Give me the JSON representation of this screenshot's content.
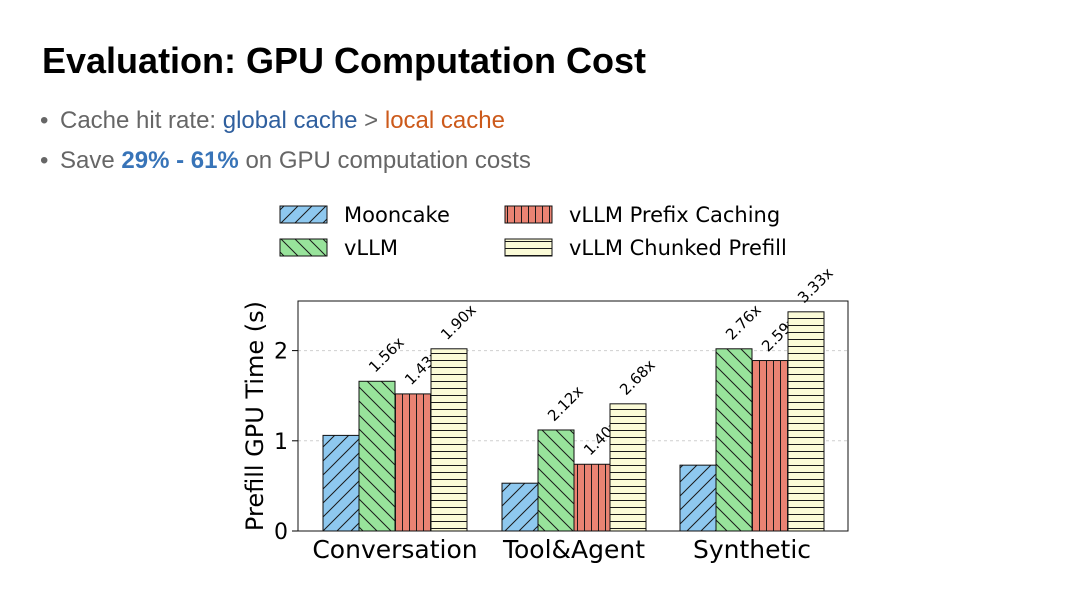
{
  "slide": {
    "title": "Evaluation: GPU Computation Cost",
    "bullet1": {
      "prefix": "Cache hit rate: ",
      "global": "global cache",
      "middle": " > ",
      "local": "local cache"
    },
    "bullet2": {
      "prefix": "Save ",
      "highlight": "29% - 61%",
      "suffix": " on GPU computation costs"
    }
  },
  "colors": {
    "global_cache": "#2f5f9e",
    "local_cache": "#cc5a1b",
    "highlight": "#3874b8"
  },
  "chart_data": {
    "type": "bar",
    "title": "",
    "xlabel": "",
    "ylabel": "Prefill GPU Time (s)",
    "ylim": [
      0,
      2.55
    ],
    "yticks": [
      0,
      1,
      2
    ],
    "grid": true,
    "legend_position": "top",
    "categories": [
      "Conversation",
      "Tool&Agent",
      "Synthetic"
    ],
    "series": [
      {
        "name": "Mooncake",
        "color": "#8ec8ef",
        "hatch": "diagonal-forward",
        "values": [
          1.06,
          0.53,
          0.73
        ],
        "labels": [
          "",
          "",
          ""
        ]
      },
      {
        "name": "vLLM",
        "color": "#98e39b",
        "hatch": "diagonal-back",
        "values": [
          1.66,
          1.12,
          2.02
        ],
        "labels": [
          "1.56x",
          "2.12x",
          "2.76x"
        ]
      },
      {
        "name": "vLLM Prefix Caching",
        "color": "#ea8373",
        "hatch": "vertical",
        "values": [
          1.52,
          0.74,
          1.89
        ],
        "labels": [
          "1.43x",
          "1.40x",
          "2.59x"
        ]
      },
      {
        "name": "vLLM Chunked Prefill",
        "color": "#fbfbd7",
        "hatch": "horizontal",
        "values": [
          2.02,
          1.41,
          2.43
        ],
        "labels": [
          "1.90x",
          "2.68x",
          "3.33x"
        ]
      }
    ]
  }
}
